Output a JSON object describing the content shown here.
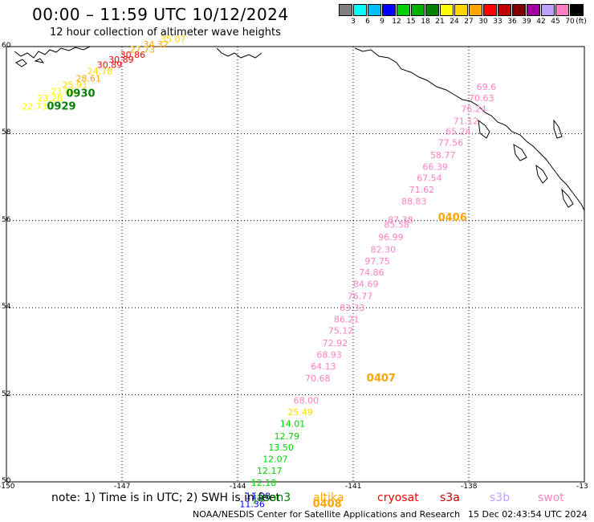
{
  "header": {
    "title": "00:00 – 11:59 UTC 10/12/2024",
    "subtitle": "12 hour collection of altimeter wave heights"
  },
  "color_scale": {
    "unit": "(ft)",
    "colors": [
      "#808080",
      "#00ffff",
      "#00bfff",
      "#0000ff",
      "#00d000",
      "#00b000",
      "#008000",
      "#ffff00",
      "#ffd700",
      "#ffa500",
      "#ff0000",
      "#c00000",
      "#800000",
      "#a000a0",
      "#c0a0ff",
      "#ff80c0",
      "#000000"
    ],
    "labels": [
      "3",
      "6",
      "9",
      "12",
      "15",
      "18",
      "21",
      "24",
      "27",
      "30",
      "33",
      "36",
      "39",
      "42",
      "45",
      "70"
    ]
  },
  "map": {
    "lon_ticks": [
      "-150",
      "-147",
      "-144",
      "-141",
      "-138",
      "-13"
    ],
    "lat_ticks": [
      "60",
      "58",
      "56",
      "54",
      "52",
      "50"
    ],
    "lon_min": -150,
    "lon_max": -135,
    "lat_min": 50,
    "lat_max": 60
  },
  "tracks": [
    {
      "name": "track-upper-left",
      "points": [
        {
          "v": "22.73",
          "c": "#ffff00",
          "lon": -149.6,
          "lat": 58.55
        },
        {
          "v": "23.28",
          "c": "#ffff00",
          "lon": -149.2,
          "lat": 58.75
        },
        {
          "v": "23.81",
          "c": "#ffff00",
          "lon": -148.85,
          "lat": 58.9
        },
        {
          "v": "25.91",
          "c": "#ffd700",
          "lon": -148.55,
          "lat": 59.05
        },
        {
          "v": "28.61",
          "c": "#ffa500",
          "lon": -148.2,
          "lat": 59.2
        },
        {
          "v": "24.78",
          "c": "#ffd700",
          "lon": -147.9,
          "lat": 59.36
        },
        {
          "v": "30.89",
          "c": "#ff0000",
          "lon": -147.65,
          "lat": 59.51
        },
        {
          "v": "30.89",
          "c": "#ff0000",
          "lon": -147.35,
          "lat": 59.63
        },
        {
          "v": "30.86",
          "c": "#ff0000",
          "lon": -147.05,
          "lat": 59.74
        },
        {
          "v": "27.73",
          "c": "#ffa500",
          "lon": -146.8,
          "lat": 59.86
        },
        {
          "v": "34.32",
          "c": "#ffa500",
          "lon": -146.45,
          "lat": 59.98
        },
        {
          "v": "35.07",
          "c": "#ffd700",
          "lon": -146.0,
          "lat": 60.1
        }
      ],
      "labels": [
        {
          "t": "0929",
          "c": "#008000",
          "lon": -148.95,
          "lat": 58.55
        },
        {
          "t": "0930",
          "c": "#008000",
          "lon": -148.45,
          "lat": 58.85
        }
      ]
    },
    {
      "name": "track-gulf",
      "points": [
        {
          "v": "69.6",
          "c": "#ff80c0",
          "lon": -137.8,
          "lat": 59.0
        },
        {
          "v": "70.63",
          "c": "#ff80c0",
          "lon": -138.0,
          "lat": 58.75
        },
        {
          "v": "76.24",
          "c": "#ff80c0",
          "lon": -138.2,
          "lat": 58.5
        },
        {
          "v": "71.12",
          "c": "#ff80c0",
          "lon": -138.4,
          "lat": 58.22
        },
        {
          "v": "65.24",
          "c": "#ff80c0",
          "lon": -138.6,
          "lat": 57.98
        },
        {
          "v": "77.56",
          "c": "#ff80c0",
          "lon": -138.8,
          "lat": 57.72
        },
        {
          "v": "58.77",
          "c": "#ff80c0",
          "lon": -139.0,
          "lat": 57.44
        },
        {
          "v": "66.39",
          "c": "#ff80c0",
          "lon": -139.2,
          "lat": 57.17
        },
        {
          "v": "67.54",
          "c": "#ff80c0",
          "lon": -139.35,
          "lat": 56.91
        },
        {
          "v": "71.62",
          "c": "#ff80c0",
          "lon": -139.55,
          "lat": 56.64
        },
        {
          "v": "88.83",
          "c": "#ff80c0",
          "lon": -139.75,
          "lat": 56.37
        },
        {
          "v": "87.38",
          "c": "#ff80c0",
          "lon": -140.1,
          "lat": 55.95
        },
        {
          "v": "85.58",
          "c": "#ff80c0",
          "lon": -140.2,
          "lat": 55.84
        },
        {
          "v": "96.99",
          "c": "#ff80c0",
          "lon": -140.35,
          "lat": 55.55
        },
        {
          "v": "82.30",
          "c": "#ff80c0",
          "lon": -140.55,
          "lat": 55.27
        },
        {
          "v": "97.75",
          "c": "#ff80c0",
          "lon": -140.7,
          "lat": 55.0
        },
        {
          "v": "74.86",
          "c": "#ff80c0",
          "lon": -140.85,
          "lat": 54.74
        },
        {
          "v": "84.69",
          "c": "#ff80c0",
          "lon": -141.0,
          "lat": 54.47
        },
        {
          "v": "76.77",
          "c": "#ff80c0",
          "lon": -141.15,
          "lat": 54.2
        },
        {
          "v": "83.33",
          "c": "#ff80c0",
          "lon": -141.35,
          "lat": 53.93
        },
        {
          "v": "86.21",
          "c": "#ff80c0",
          "lon": -141.5,
          "lat": 53.66
        },
        {
          "v": "75.12",
          "c": "#ff80c0",
          "lon": -141.65,
          "lat": 53.4
        },
        {
          "v": "72.92",
          "c": "#ff80c0",
          "lon": -141.8,
          "lat": 53.12
        },
        {
          "v": "68.93",
          "c": "#ff80c0",
          "lon": -141.95,
          "lat": 52.85
        },
        {
          "v": "64.13",
          "c": "#ff80c0",
          "lon": -142.1,
          "lat": 52.58
        },
        {
          "v": "70.68",
          "c": "#ff80c0",
          "lon": -142.25,
          "lat": 52.31
        },
        {
          "v": "68.00",
          "c": "#ff80c0",
          "lon": -142.55,
          "lat": 51.8
        },
        {
          "v": "25.49",
          "c": "#ffd700",
          "lon": -142.7,
          "lat": 51.53
        },
        {
          "v": "14.01",
          "c": "#00d000",
          "lon": -142.9,
          "lat": 51.26
        },
        {
          "v": "12.79",
          "c": "#00d000",
          "lon": -143.05,
          "lat": 50.98
        },
        {
          "v": "13.50",
          "c": "#00d000",
          "lon": -143.2,
          "lat": 50.72
        },
        {
          "v": "12.07",
          "c": "#00d000",
          "lon": -143.35,
          "lat": 50.45
        },
        {
          "v": "12.17",
          "c": "#00d000",
          "lon": -143.5,
          "lat": 50.18
        },
        {
          "v": "12.18",
          "c": "#00d000",
          "lon": -143.65,
          "lat": 49.91
        },
        {
          "v": "11.28",
          "c": "#0000ff",
          "lon": -143.8,
          "lat": 49.6
        },
        {
          "v": "11.36",
          "c": "#0000ff",
          "lon": -143.95,
          "lat": 49.42
        }
      ],
      "labels": [
        {
          "t": "0406",
          "c": "#ffa500",
          "lon": -138.8,
          "lat": 56.0
        },
        {
          "t": "0407",
          "c": "#ffa500",
          "lon": -140.65,
          "lat": 52.31
        },
        {
          "t": "0408",
          "c": "#ffa500",
          "lon": -142.05,
          "lat": 49.42
        }
      ]
    }
  ],
  "footer": {
    "note": "note: 1) Time is in UTC; 2) SWH is in feet",
    "legend": [
      {
        "label": "jason3",
        "c": "#008000"
      },
      {
        "label": "altika",
        "c": "#ffa500"
      },
      {
        "label": "cryosat",
        "c": "#ff0000"
      },
      {
        "label": "s3a",
        "c": "#c00000"
      },
      {
        "label": "s3b",
        "c": "#c0a0ff"
      },
      {
        "label": "swot",
        "c": "#ff80c0"
      }
    ],
    "credit": "NOAA/NESDIS Center for Satellite Applications and Research",
    "timestamp": "15 Dec 02:43:54 UTC 2024"
  }
}
